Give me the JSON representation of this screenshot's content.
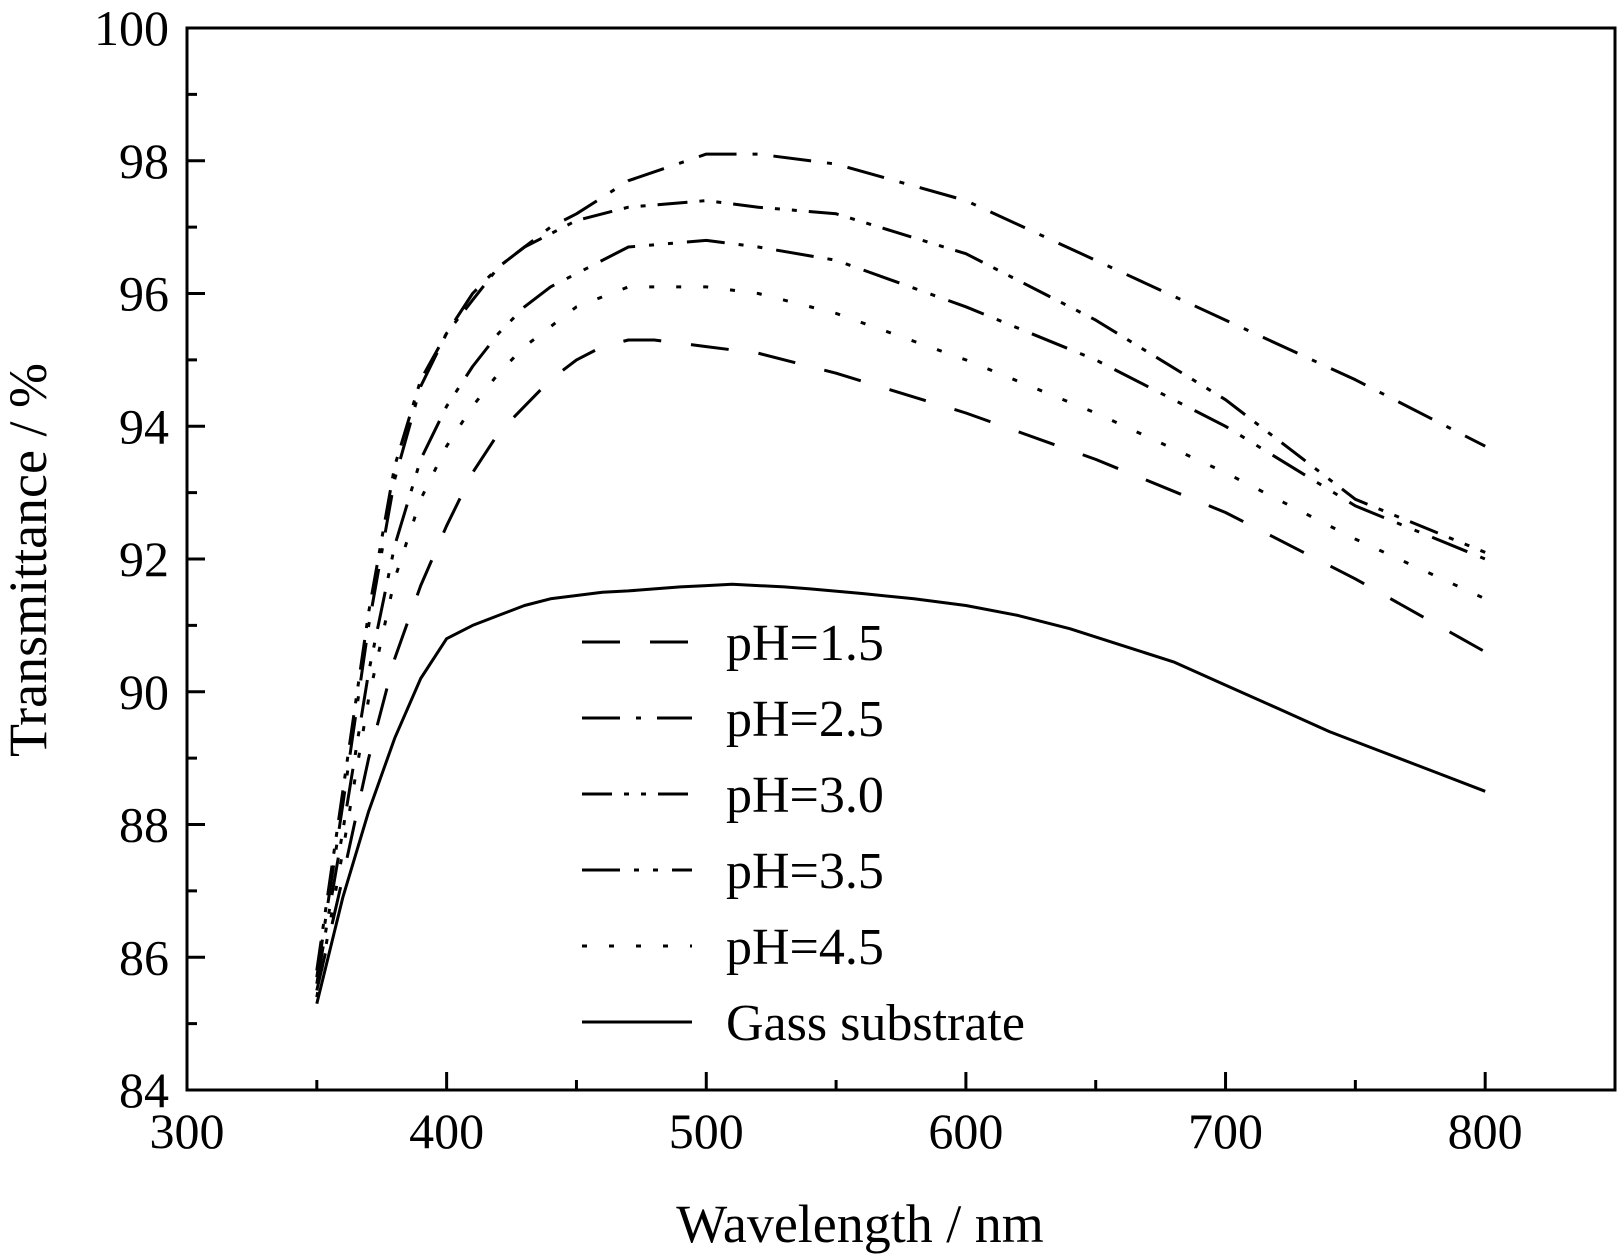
{
  "chart_data": {
    "type": "line",
    "title": "",
    "xlabel": "Wavelength / nm",
    "ylabel": "Transmittance / %",
    "xlim": [
      300,
      850
    ],
    "ylim": [
      84,
      100
    ],
    "xticks": [
      "300",
      "400",
      "500",
      "600",
      "700",
      "800"
    ],
    "yticks": [
      "84",
      "86",
      "88",
      "90",
      "92",
      "94",
      "96",
      "98",
      "100"
    ],
    "grid": false,
    "legend_position": "center-left",
    "series": [
      {
        "name": "pH=1.5",
        "dash": "38 30",
        "x": [
          350,
          360,
          370,
          380,
          390,
          400,
          410,
          420,
          430,
          440,
          450,
          460,
          470,
          480,
          500,
          520,
          550,
          600,
          650,
          700,
          750,
          800
        ],
        "y": [
          85.5,
          87.2,
          89.0,
          90.5,
          91.6,
          92.5,
          93.3,
          93.9,
          94.3,
          94.7,
          95.0,
          95.2,
          95.3,
          95.3,
          95.2,
          95.1,
          94.8,
          94.2,
          93.5,
          92.7,
          91.7,
          90.6
        ]
      },
      {
        "name": "pH=2.5",
        "dash": "38 16 5 16",
        "x": [
          350,
          360,
          370,
          380,
          390,
          400,
          410,
          420,
          430,
          440,
          450,
          470,
          500,
          520,
          550,
          600,
          650,
          700,
          750,
          800
        ],
        "y": [
          85.7,
          88.3,
          91.0,
          93.2,
          94.6,
          95.4,
          96.0,
          96.4,
          96.7,
          97.0,
          97.2,
          97.7,
          98.1,
          98.1,
          97.95,
          97.4,
          96.5,
          95.6,
          94.7,
          93.7
        ]
      },
      {
        "name": "pH=3.0",
        "dash": "30 12 5 12 5 12",
        "x": [
          350,
          360,
          370,
          380,
          390,
          400,
          410,
          420,
          430,
          440,
          450,
          470,
          500,
          520,
          550,
          600,
          650,
          700,
          750,
          800
        ],
        "y": [
          85.8,
          88.5,
          91.2,
          93.4,
          94.7,
          95.4,
          95.9,
          96.4,
          96.7,
          96.9,
          97.1,
          97.3,
          97.4,
          97.3,
          97.2,
          96.6,
          95.6,
          94.4,
          92.9,
          92.1
        ]
      },
      {
        "name": "pH=3.5",
        "dash": "38 14 5 14 5 14",
        "x": [
          350,
          360,
          370,
          380,
          390,
          400,
          410,
          420,
          430,
          440,
          450,
          470,
          500,
          520,
          550,
          600,
          650,
          700,
          750,
          800
        ],
        "y": [
          85.6,
          87.9,
          90.3,
          92.2,
          93.5,
          94.3,
          94.9,
          95.4,
          95.8,
          96.1,
          96.3,
          96.7,
          96.8,
          96.7,
          96.5,
          95.8,
          95.0,
          94.0,
          92.8,
          92.0
        ]
      },
      {
        "name": "pH=4.5",
        "dash": "5 22",
        "x": [
          350,
          360,
          370,
          380,
          390,
          400,
          410,
          420,
          430,
          440,
          450,
          470,
          500,
          520,
          550,
          600,
          650,
          700,
          750,
          800
        ],
        "y": [
          85.4,
          87.6,
          89.9,
          91.7,
          92.9,
          93.7,
          94.3,
          94.8,
          95.2,
          95.5,
          95.8,
          96.1,
          96.1,
          96.0,
          95.7,
          95.0,
          94.2,
          93.3,
          92.3,
          91.4
        ]
      },
      {
        "name": "Gass substrate",
        "dash": "",
        "x": [
          350,
          360,
          370,
          380,
          390,
          400,
          410,
          420,
          430,
          440,
          450,
          460,
          470,
          480,
          490,
          500,
          510,
          520,
          530,
          540,
          560,
          580,
          600,
          620,
          640,
          660,
          680,
          700,
          720,
          740,
          760,
          780,
          800
        ],
        "y": [
          85.3,
          86.9,
          88.2,
          89.3,
          90.2,
          90.8,
          91.0,
          91.15,
          91.3,
          91.4,
          91.45,
          91.5,
          91.52,
          91.55,
          91.58,
          91.6,
          91.62,
          91.6,
          91.58,
          91.55,
          91.48,
          91.4,
          91.3,
          91.15,
          90.95,
          90.7,
          90.45,
          90.1,
          89.75,
          89.4,
          89.1,
          88.8,
          88.5
        ]
      }
    ]
  }
}
